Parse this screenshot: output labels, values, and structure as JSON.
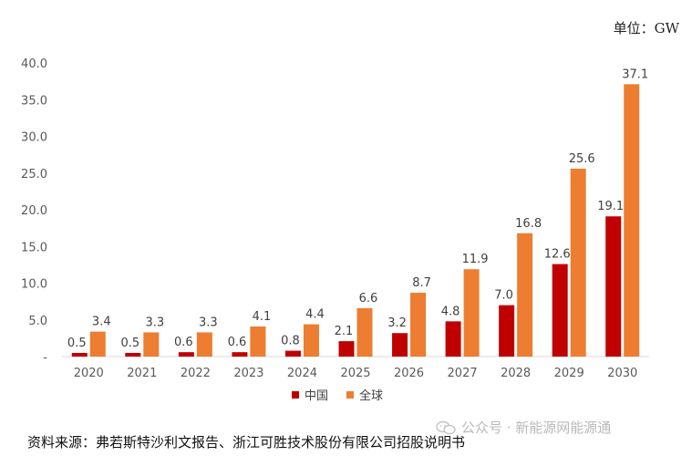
{
  "chart_data": {
    "type": "bar",
    "unit_label": "单位：GW",
    "categories": [
      "2020",
      "2021",
      "2022",
      "2023",
      "2024",
      "2025",
      "2026",
      "2027",
      "2028",
      "2029",
      "2030"
    ],
    "series": [
      {
        "name": "中国",
        "color": "#c00000",
        "values": [
          0.5,
          0.5,
          0.6,
          0.6,
          0.8,
          2.1,
          3.2,
          4.8,
          7.0,
          12.6,
          19.1
        ],
        "labels": [
          "0.5",
          "0.5",
          "0.6",
          "0.6",
          "0.8",
          "2.1",
          "3.2",
          "4.8",
          "7.0",
          "12.6",
          "19.1"
        ]
      },
      {
        "name": "全球",
        "color": "#ed7d31",
        "values": [
          3.4,
          3.3,
          3.3,
          4.1,
          4.4,
          6.6,
          8.7,
          11.9,
          16.8,
          25.6,
          37.1
        ],
        "labels": [
          "3.4",
          "3.3",
          "3.3",
          "4.1",
          "4.4",
          "6.6",
          "8.7",
          "11.9",
          "16.8",
          "25.6",
          "37.1"
        ]
      }
    ],
    "ylim": [
      0,
      40
    ],
    "yticks": [
      "-",
      "5.0",
      "10.0",
      "15.0",
      "20.0",
      "25.0",
      "30.0",
      "35.0",
      "40.0"
    ],
    "grid": false,
    "legend": "bottom-center"
  },
  "source_text": "资料来源：弗若斯特沙利文报告、浙江可胜技术股份有限公司招股说明书",
  "watermark_text": "公众号 · 新能源网能源通"
}
